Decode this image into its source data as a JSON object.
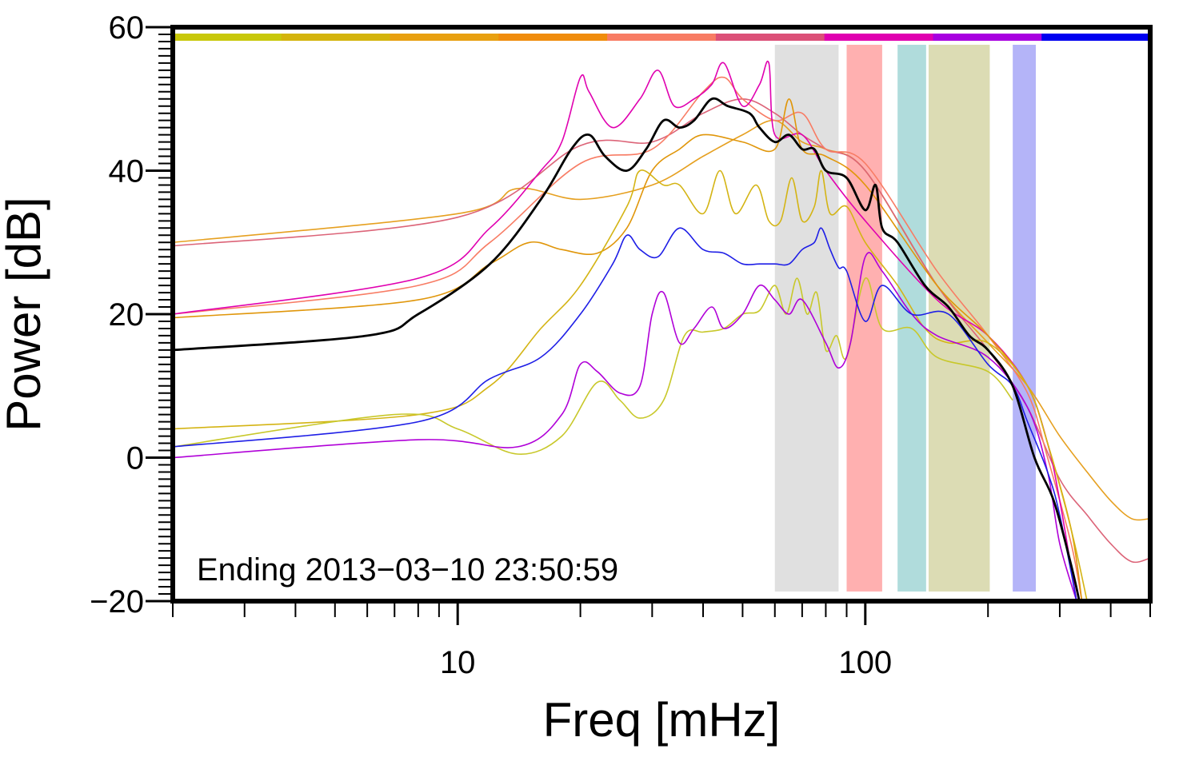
{
  "chart_data": {
    "type": "line",
    "xlabel": "Freq [mHz]",
    "ylabel": "Power [dB]",
    "x_scale": "log",
    "xlim": [
      2,
      500
    ],
    "ylim": [
      -20,
      60
    ],
    "y_ticks": [
      {
        "value": -20,
        "label": "−20"
      },
      {
        "value": 0,
        "label": "0"
      },
      {
        "value": 20,
        "label": "20"
      },
      {
        "value": 40,
        "label": "40"
      },
      {
        "value": 60,
        "label": "60"
      }
    ],
    "x_ticks": [
      {
        "value": 10,
        "label": "10"
      },
      {
        "value": 100,
        "label": "100"
      }
    ],
    "annotation": "Ending 2013−03−10 23:50:59",
    "grid": false,
    "top_color_bar": [
      "#c8c80a",
      "#d4b40c",
      "#e8a010",
      "#f08c0c",
      "#f87c64",
      "#dc5078",
      "#e000b0",
      "#a800e0",
      "#0000f0"
    ],
    "frequency_bands": [
      {
        "from": 60,
        "to": 86,
        "color": "#e0e0e0"
      },
      {
        "from": 90,
        "to": 110,
        "color": "#ffb0b0"
      },
      {
        "from": 120,
        "to": 141,
        "color": "#b0dcdc"
      },
      {
        "from": 143,
        "to": 202,
        "color": "#dcdcb4"
      },
      {
        "from": 230,
        "to": 262,
        "color": "#b4b4f8"
      }
    ],
    "series": [
      {
        "color": "#e6a020",
        "width": 1.6,
        "points": [
          [
            2,
            30
          ],
          [
            10,
            34
          ],
          [
            14,
            37.5
          ],
          [
            20,
            36
          ],
          [
            30,
            38
          ],
          [
            40,
            42
          ],
          [
            50,
            45
          ],
          [
            60,
            47
          ],
          [
            70,
            44
          ],
          [
            80,
            43
          ],
          [
            100,
            40
          ],
          [
            150,
            24
          ],
          [
            200,
            16
          ],
          [
            250,
            10
          ],
          [
            300,
            3
          ],
          [
            350,
            -2
          ],
          [
            400,
            -6
          ],
          [
            450,
            -8.5
          ],
          [
            500,
            -8.5
          ]
        ]
      },
      {
        "color": "#dc6478",
        "width": 1.6,
        "points": [
          [
            2,
            29.5
          ],
          [
            10,
            33.5
          ],
          [
            20,
            43.5
          ],
          [
            30,
            44
          ],
          [
            40,
            48
          ],
          [
            50,
            50
          ],
          [
            60,
            48
          ],
          [
            70,
            45
          ],
          [
            80,
            43
          ],
          [
            100,
            40
          ],
          [
            150,
            24
          ],
          [
            200,
            15
          ],
          [
            250,
            7
          ],
          [
            300,
            -3
          ],
          [
            350,
            -8
          ],
          [
            400,
            -12
          ],
          [
            450,
            -14.5
          ],
          [
            500,
            -14
          ]
        ]
      },
      {
        "color": "#f87c64",
        "width": 1.6,
        "points": [
          [
            2,
            20
          ],
          [
            8,
            24
          ],
          [
            12,
            30
          ],
          [
            20,
            41
          ],
          [
            30,
            43
          ],
          [
            40,
            51
          ],
          [
            45,
            53
          ],
          [
            50,
            50
          ],
          [
            60,
            47
          ],
          [
            70,
            48
          ],
          [
            80,
            43
          ],
          [
            100,
            41
          ],
          [
            150,
            26
          ],
          [
            200,
            17
          ],
          [
            250,
            9
          ],
          [
            280,
            0
          ],
          [
            320,
            -12
          ],
          [
            340,
            -20
          ]
        ]
      },
      {
        "color": "#e000b0",
        "width": 1.6,
        "points": [
          [
            2,
            20
          ],
          [
            8,
            25
          ],
          [
            12,
            32
          ],
          [
            16,
            40
          ],
          [
            18,
            44
          ],
          [
            20,
            53
          ],
          [
            21,
            51
          ],
          [
            24,
            46
          ],
          [
            28,
            50
          ],
          [
            31,
            54
          ],
          [
            34,
            49
          ],
          [
            38,
            50
          ],
          [
            42,
            52
          ],
          [
            45,
            55
          ],
          [
            50,
            49
          ],
          [
            55,
            52
          ],
          [
            58,
            55
          ],
          [
            60,
            45
          ],
          [
            70,
            45
          ],
          [
            80,
            40
          ],
          [
            100,
            33
          ],
          [
            150,
            22
          ],
          [
            200,
            17
          ],
          [
            250,
            10
          ],
          [
            280,
            2
          ],
          [
            300,
            -6
          ],
          [
            330,
            -20
          ]
        ]
      },
      {
        "color": "#e0960a",
        "width": 1.6,
        "points": [
          [
            2,
            19.5
          ],
          [
            8,
            22
          ],
          [
            12,
            27
          ],
          [
            15,
            30
          ],
          [
            18,
            29
          ],
          [
            22,
            28.5
          ],
          [
            26,
            32
          ],
          [
            30,
            40
          ],
          [
            35,
            43
          ],
          [
            40,
            45
          ],
          [
            50,
            44
          ],
          [
            60,
            43
          ],
          [
            65,
            50
          ],
          [
            70,
            43
          ],
          [
            80,
            42
          ],
          [
            100,
            38
          ],
          [
            150,
            24
          ],
          [
            200,
            17
          ],
          [
            250,
            10
          ],
          [
            280,
            2
          ],
          [
            320,
            -10
          ],
          [
            340,
            -20
          ]
        ]
      },
      {
        "color": "#d4b414",
        "width": 1.6,
        "points": [
          [
            2,
            4
          ],
          [
            8,
            6
          ],
          [
            12,
            10
          ],
          [
            16,
            18
          ],
          [
            20,
            24
          ],
          [
            26,
            35
          ],
          [
            28,
            40
          ],
          [
            32,
            38
          ],
          [
            35,
            38
          ],
          [
            40,
            34
          ],
          [
            44,
            40
          ],
          [
            48,
            34
          ],
          [
            54,
            38
          ],
          [
            58,
            33
          ],
          [
            62,
            33
          ],
          [
            66,
            39
          ],
          [
            70,
            33
          ],
          [
            75,
            35
          ],
          [
            78,
            40
          ],
          [
            82,
            34
          ],
          [
            90,
            35
          ],
          [
            100,
            30
          ],
          [
            120,
            24
          ],
          [
            140,
            18
          ],
          [
            160,
            16
          ],
          [
            200,
            16
          ],
          [
            250,
            10
          ],
          [
            280,
            2
          ],
          [
            320,
            -10
          ],
          [
            350,
            -20
          ]
        ]
      },
      {
        "color": "#c8c82a",
        "width": 1.6,
        "points": [
          [
            2,
            1.5
          ],
          [
            7,
            6
          ],
          [
            10,
            4
          ],
          [
            14,
            0.5
          ],
          [
            18,
            3
          ],
          [
            22,
            10.5
          ],
          [
            25,
            8
          ],
          [
            28,
            5.5
          ],
          [
            32,
            8
          ],
          [
            36,
            17
          ],
          [
            40,
            17.5
          ],
          [
            45,
            18
          ],
          [
            50,
            20
          ],
          [
            55,
            20.5
          ],
          [
            60,
            24
          ],
          [
            64,
            20
          ],
          [
            68,
            25
          ],
          [
            72,
            20
          ],
          [
            76,
            23
          ],
          [
            80,
            15
          ],
          [
            85,
            17
          ],
          [
            90,
            14
          ],
          [
            100,
            25
          ],
          [
            110,
            18
          ],
          [
            130,
            18
          ],
          [
            150,
            14
          ],
          [
            200,
            12
          ],
          [
            230,
            8
          ]
        ]
      },
      {
        "color": "#b000d8",
        "width": 1.6,
        "points": [
          [
            2,
            0
          ],
          [
            8,
            2.5
          ],
          [
            14,
            1.5
          ],
          [
            18,
            6
          ],
          [
            20,
            13
          ],
          [
            22,
            12
          ],
          [
            25,
            9
          ],
          [
            28,
            10
          ],
          [
            30,
            20
          ],
          [
            32,
            23
          ],
          [
            35,
            16
          ],
          [
            38,
            18
          ],
          [
            42,
            21
          ],
          [
            45,
            18
          ],
          [
            50,
            20
          ],
          [
            55,
            24
          ],
          [
            60,
            22
          ],
          [
            65,
            20
          ],
          [
            70,
            22
          ],
          [
            80,
            16
          ],
          [
            86,
            12.5
          ],
          [
            92,
            16
          ],
          [
            100,
            28
          ],
          [
            110,
            26
          ],
          [
            130,
            20
          ],
          [
            150,
            17
          ],
          [
            200,
            14
          ],
          [
            250,
            7
          ],
          [
            280,
            -2
          ],
          [
            300,
            -12
          ],
          [
            330,
            -20
          ]
        ]
      },
      {
        "color": "#1e1ee6",
        "width": 1.6,
        "points": [
          [
            2,
            1.5
          ],
          [
            8,
            5
          ],
          [
            12,
            11
          ],
          [
            16,
            14
          ],
          [
            20,
            20
          ],
          [
            24,
            27
          ],
          [
            26,
            31
          ],
          [
            28,
            29
          ],
          [
            31,
            28
          ],
          [
            35,
            32
          ],
          [
            40,
            29
          ],
          [
            45,
            28.5
          ],
          [
            50,
            27
          ],
          [
            55,
            27
          ],
          [
            60,
            27
          ],
          [
            65,
            27
          ],
          [
            70,
            29
          ],
          [
            75,
            30
          ],
          [
            78,
            32
          ],
          [
            82,
            29
          ],
          [
            86,
            26.5
          ],
          [
            90,
            26
          ],
          [
            100,
            19
          ],
          [
            110,
            24
          ],
          [
            130,
            20
          ],
          [
            160,
            20
          ],
          [
            200,
            13
          ],
          [
            230,
            10
          ],
          [
            250,
            5
          ],
          [
            280,
            -2
          ],
          [
            300,
            -8
          ],
          [
            330,
            -20
          ]
        ]
      },
      {
        "color": "#000000",
        "width": 2.8,
        "points": [
          [
            2,
            15
          ],
          [
            6,
            17
          ],
          [
            8,
            20
          ],
          [
            12,
            27
          ],
          [
            16,
            36
          ],
          [
            19,
            43
          ],
          [
            21,
            45
          ],
          [
            23,
            42
          ],
          [
            26,
            40
          ],
          [
            29,
            43
          ],
          [
            32,
            47
          ],
          [
            35,
            46
          ],
          [
            38,
            47
          ],
          [
            42,
            50
          ],
          [
            46,
            49
          ],
          [
            52,
            48
          ],
          [
            55,
            46
          ],
          [
            60,
            44
          ],
          [
            65,
            45
          ],
          [
            70,
            43
          ],
          [
            75,
            43
          ],
          [
            80,
            40
          ],
          [
            90,
            39
          ],
          [
            100,
            34.5
          ],
          [
            106,
            38
          ],
          [
            110,
            32
          ],
          [
            120,
            30
          ],
          [
            140,
            24
          ],
          [
            160,
            21
          ],
          [
            180,
            17
          ],
          [
            200,
            15
          ],
          [
            230,
            10
          ],
          [
            260,
            0
          ],
          [
            290,
            -6
          ],
          [
            320,
            -15
          ],
          [
            335,
            -20
          ]
        ]
      }
    ]
  }
}
